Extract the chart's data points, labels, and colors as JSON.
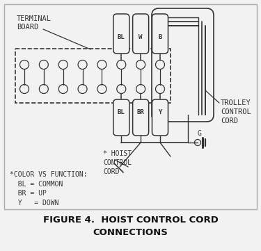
{
  "title_line1": "FIGURE 4.  HOIST CONTROL CORD",
  "title_line2": "CONNECTIONS",
  "bg_color": "#f2f2f2",
  "lc": "#333333",
  "terminal_board_label": "TERMINAL\nBOARD",
  "trolley_cord_label": "TROLLEY\nCONTROL\nCORD",
  "hoist_cord_label": "* HOIST\nCONTROL\nCORD",
  "color_legend": "*COLOR VS FUNCTION:\n  BL = COMMON\n  BR = UP\n  Y   = DOWN",
  "top_labels": [
    "BL",
    "W",
    "B"
  ],
  "bot_labels": [
    "BL",
    "BR",
    "Y"
  ],
  "ground_label": "G",
  "figsize": [
    3.75,
    3.61
  ],
  "dpi": 100
}
